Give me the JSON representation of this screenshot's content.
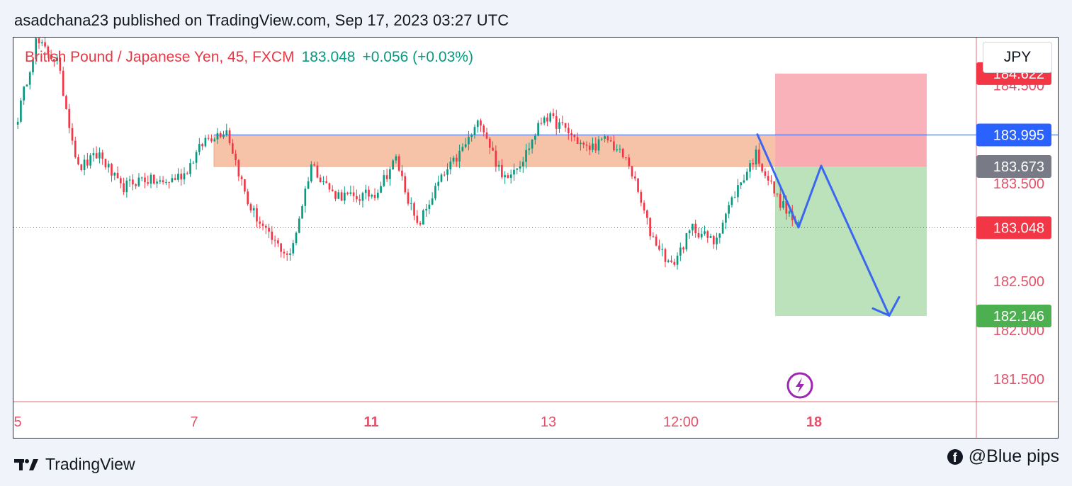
{
  "header": {
    "publish_text": "asadchana23 published on TradingView.com, Sep 17, 2023 03:27 UTC"
  },
  "legend": {
    "symbol": "British Pound / Japanese Yen, 45, FXCM",
    "price": "183.048",
    "change": "+0.056 (+0.03%)"
  },
  "currency_button": {
    "label": "JPY"
  },
  "footer": {
    "brand": "TradingView",
    "credit": "@Blue pips"
  },
  "colors": {
    "up": "#089981",
    "down": "#f23645",
    "zone": "#f6c3a8",
    "stop_zone": "#f8aab2",
    "target_zone": "#b7e0b6",
    "arrow": "#3a66f0",
    "resistance_line": "#3b5bc9"
  },
  "chart_data": {
    "type": "candlestick",
    "symbol": "GBPJPY",
    "timeframe": "45",
    "ylim": [
      181.27,
      184.99
    ],
    "y_ticks": [
      "184.500",
      "183.500",
      "182.500",
      "182.000",
      "181.500"
    ],
    "x_ticks": [
      {
        "label": "5",
        "bold": false
      },
      {
        "label": "7",
        "bold": false
      },
      {
        "label": "11",
        "bold": true
      },
      {
        "label": "13",
        "bold": false
      },
      {
        "label": "12:00",
        "bold": false
      },
      {
        "label": "18",
        "bold": true
      }
    ],
    "last_price": 183.048,
    "price_labels": [
      {
        "value": 184.622,
        "text": "184.622",
        "color": "#f23645"
      },
      {
        "value": 183.995,
        "text": "183.995",
        "color": "#2962ff"
      },
      {
        "value": 183.673,
        "text": "183.673",
        "color": "#787b86"
      },
      {
        "value": 183.048,
        "text": "183.048",
        "color": "#f23645"
      },
      {
        "value": 182.146,
        "text": "182.146",
        "color": "#4caf50"
      }
    ],
    "resistance_zone": {
      "top": 183.995,
      "bottom": 183.673
    },
    "short_position": {
      "entry": 183.673,
      "stop": 184.622,
      "target": 182.146
    },
    "projection": [
      183.05,
      183.68,
      182.15
    ],
    "segments": [
      {
        "from": 184.05,
        "to": 184.95
      },
      {
        "from": 184.95,
        "to": 184.75
      },
      {
        "from": 184.75,
        "to": 183.65
      },
      {
        "from": 183.65,
        "to": 183.8
      },
      {
        "from": 183.8,
        "to": 183.45
      },
      {
        "from": 183.45,
        "to": 183.55
      },
      {
        "from": 183.55,
        "to": 183.5
      },
      {
        "from": 183.5,
        "to": 183.6
      },
      {
        "from": 183.6,
        "to": 183.95
      },
      {
        "from": 183.95,
        "to": 184.05
      },
      {
        "from": 184.05,
        "to": 183.3
      },
      {
        "from": 183.3,
        "to": 182.95
      },
      {
        "from": 182.95,
        "to": 182.75
      },
      {
        "from": 182.75,
        "to": 183.7
      },
      {
        "from": 183.7,
        "to": 183.4
      },
      {
        "from": 183.4,
        "to": 183.35
      },
      {
        "from": 183.35,
        "to": 183.4
      },
      {
        "from": 183.4,
        "to": 183.75
      },
      {
        "from": 183.75,
        "to": 183.05
      },
      {
        "from": 183.05,
        "to": 183.5
      },
      {
        "from": 183.5,
        "to": 183.8
      },
      {
        "from": 183.8,
        "to": 184.15
      },
      {
        "from": 184.15,
        "to": 183.55
      },
      {
        "from": 183.55,
        "to": 183.75
      },
      {
        "from": 183.75,
        "to": 184.2
      },
      {
        "from": 184.2,
        "to": 184.05
      },
      {
        "from": 184.05,
        "to": 183.85
      },
      {
        "from": 183.85,
        "to": 183.95
      },
      {
        "from": 183.95,
        "to": 183.7
      },
      {
        "from": 183.7,
        "to": 183.0
      },
      {
        "from": 183.0,
        "to": 182.65
      },
      {
        "from": 182.65,
        "to": 183.05
      },
      {
        "from": 183.05,
        "to": 182.9
      },
      {
        "from": 182.9,
        "to": 183.4
      },
      {
        "from": 183.4,
        "to": 183.8
      },
      {
        "from": 183.8,
        "to": 183.35
      },
      {
        "from": 183.35,
        "to": 183.05
      }
    ]
  }
}
